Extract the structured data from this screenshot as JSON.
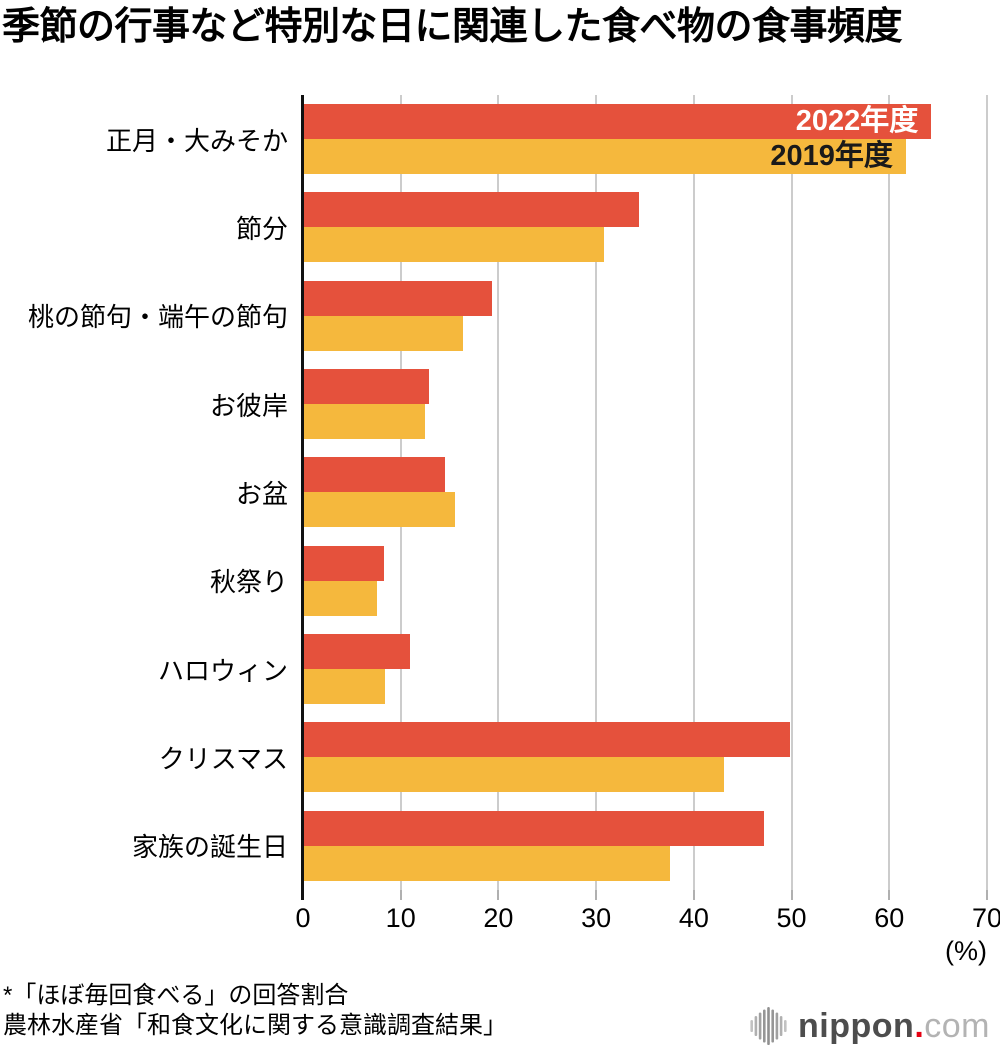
{
  "title": "季節の行事など特別な日に関連した食べ物の食事頻度",
  "chart_data": {
    "type": "bar",
    "orientation": "horizontal",
    "title": "季節の行事など特別な日に関連した食べ物の食事頻度",
    "categories": [
      "正月・大みそか",
      "節分",
      "桃の節句・端午の節句",
      "お彼岸",
      "お盆",
      "秋祭り",
      "ハロウィン",
      "クリスマス",
      "家族の誕生日"
    ],
    "series": [
      {
        "name": "2022年度",
        "color": "#e5513c",
        "label_color": "#ffffff",
        "values": [
          64.3,
          34.4,
          19.3,
          12.9,
          14.5,
          8.3,
          11.0,
          49.8,
          47.2
        ]
      },
      {
        "name": "2019年度",
        "color": "#f5b83d",
        "label_color": "#1a1a1a",
        "values": [
          61.7,
          30.8,
          16.4,
          12.5,
          15.6,
          7.6,
          8.4,
          43.1,
          37.6
        ]
      }
    ],
    "xlim": [
      0,
      70
    ],
    "xticks": [
      0,
      10,
      20,
      30,
      40,
      50,
      60,
      70
    ],
    "x_unit": "(%)",
    "grid": true,
    "legend_position": "inside-first-bars",
    "colors": {
      "grid": "#cccccc",
      "axis": "#111111",
      "tick": "#b0b0b0"
    }
  },
  "footnotes": [
    "*「ほぼ毎回食べる」の回答割合",
    "農林水産省「和食文化に関する意識調査結果」"
  ],
  "branding": {
    "brand_bold": "nippon",
    "brand_dot": ".",
    "brand_light": "com"
  }
}
